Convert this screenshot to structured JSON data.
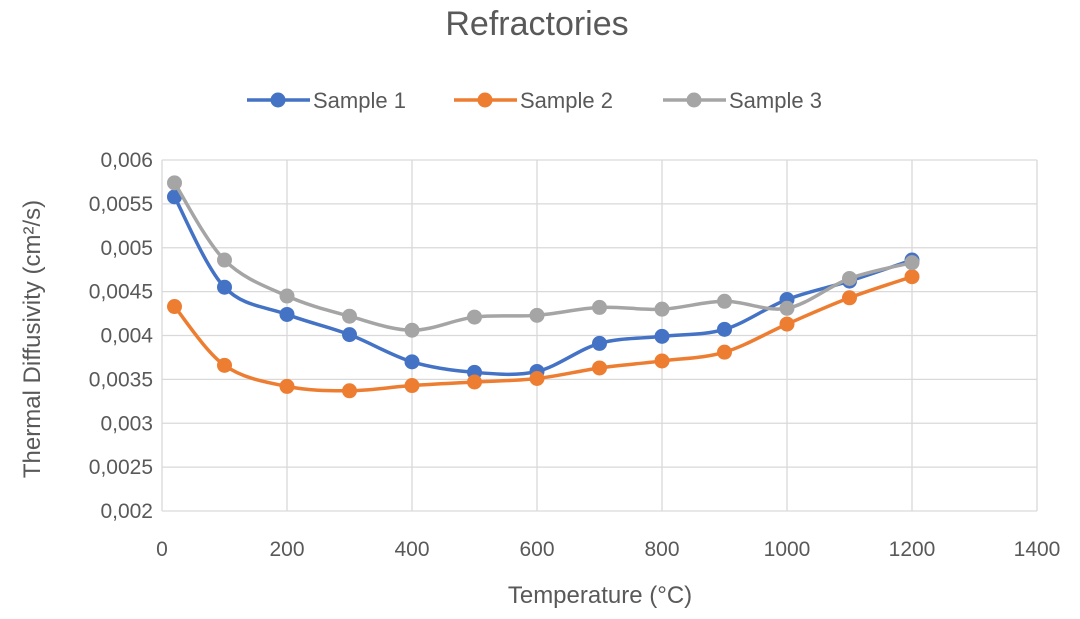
{
  "chart_data": {
    "type": "line",
    "title": "Refractories",
    "xlabel": "Temperature (°C)",
    "ylabel": "Thermal Diffusivity (cm²/s)",
    "xlim": [
      0,
      1400
    ],
    "ylim": [
      0.002,
      0.006
    ],
    "x_ticks": [
      0,
      200,
      400,
      600,
      800,
      1000,
      1200,
      1400
    ],
    "x_tick_labels": [
      "0",
      "200",
      "400",
      "600",
      "800",
      "1000",
      "1200",
      "1400"
    ],
    "y_ticks": [
      0.002,
      0.0025,
      0.003,
      0.0035,
      0.004,
      0.0045,
      0.005,
      0.0055,
      0.006
    ],
    "y_tick_labels": [
      "0,002",
      "0,0025",
      "0,003",
      "0,0035",
      "0,004",
      "0,0045",
      "0,005",
      "0,0055",
      "0,006"
    ],
    "grid": true,
    "legend_position": "top",
    "smooth": true,
    "series": [
      {
        "name": "Sample 1",
        "color": "#4472c4",
        "x": [
          20,
          100,
          200,
          300,
          400,
          500,
          600,
          700,
          800,
          900,
          1000,
          1100,
          1200
        ],
        "y": [
          0.00558,
          0.00455,
          0.00424,
          0.00401,
          0.0037,
          0.00358,
          0.00359,
          0.00391,
          0.00399,
          0.00407,
          0.00441,
          0.00462,
          0.00486
        ]
      },
      {
        "name": "Sample 2",
        "color": "#ed7d31",
        "x": [
          20,
          100,
          200,
          300,
          400,
          500,
          600,
          700,
          800,
          900,
          1000,
          1100,
          1200
        ],
        "y": [
          0.00433,
          0.00366,
          0.00342,
          0.00337,
          0.00343,
          0.00347,
          0.00351,
          0.00363,
          0.00371,
          0.00381,
          0.00413,
          0.00443,
          0.00467
        ]
      },
      {
        "name": "Sample 3",
        "color": "#a5a5a5",
        "x": [
          20,
          100,
          200,
          300,
          400,
          500,
          600,
          700,
          800,
          900,
          1000,
          1100,
          1200
        ],
        "y": [
          0.00574,
          0.00486,
          0.00445,
          0.00422,
          0.00406,
          0.00421,
          0.00423,
          0.00432,
          0.0043,
          0.00439,
          0.00431,
          0.00465,
          0.00483
        ]
      }
    ]
  }
}
